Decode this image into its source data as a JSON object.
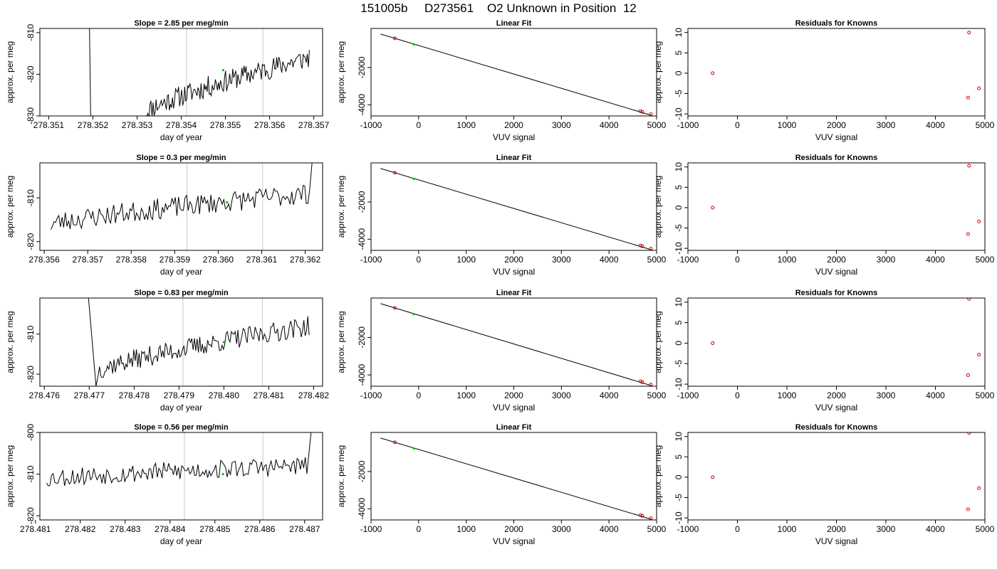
{
  "title": "151005b     D273561    O2 Unknown in Position  12",
  "colors": {
    "axis": "#000000",
    "trace": "#000000",
    "grid_vline": "#c8c8c8",
    "known_point": "#d00000",
    "unknown_point": "#00c000",
    "fit_line": "#000000"
  },
  "chart_data": [
    {
      "type": "line",
      "row": 0,
      "title": "Slope =  2.85  per meg/min",
      "xlabel": "day of year",
      "ylabel": "approx. per meg",
      "xlim": [
        278.3508,
        278.3572
      ],
      "ylim": [
        -830,
        -809
      ],
      "xticks": [
        "278.351",
        "278.352",
        "278.353",
        "278.354",
        "278.355",
        "278.356",
        "278.357"
      ],
      "yticks": [
        "-810",
        "-820",
        "-830"
      ],
      "vlines": [
        278.35412,
        278.35585
      ],
      "start_values": [
        -790,
        -830
      ],
      "start_x": [
        278.3519,
        278.35195
      ],
      "trace_start": 278.3532,
      "trace_end": 278.3569,
      "trace_base": -829,
      "trace_end_level": -816,
      "noise": 2.6,
      "seed": 11,
      "marker": {
        "x": 278.35495,
        "y": -819
      }
    },
    {
      "type": "line",
      "row": 1,
      "title": "Slope =  0.3  per meg/min",
      "xlabel": "day of year",
      "ylabel": "approx. per meg",
      "xlim": [
        278.3559,
        278.3624
      ],
      "ylim": [
        -822,
        -802
      ],
      "xticks": [
        "278.356",
        "278.357",
        "278.358",
        "278.359",
        "278.360",
        "278.361",
        "278.362"
      ],
      "yticks": [
        "-810",
        "-820"
      ],
      "vlines": [
        278.35928,
        278.36102
      ],
      "trace_start": 278.35615,
      "trace_end": 278.3621,
      "trace_base": -816,
      "trace_end_level": -809,
      "noise": 2.4,
      "seed": 23,
      "end_spike": -795,
      "marker": {
        "x": 278.3602,
        "y": -811
      }
    },
    {
      "type": "line",
      "row": 2,
      "title": "Slope =  0.83  per meg/min",
      "xlabel": "day of year",
      "ylabel": "approx. per meg",
      "xlim": [
        278.4759,
        278.4822
      ],
      "ylim": [
        -823,
        -801
      ],
      "xticks": [
        "278.476",
        "278.477",
        "278.478",
        "278.479",
        "278.480",
        "278.481",
        "278.482"
      ],
      "yticks": [
        "-810",
        "-820"
      ],
      "vlines": [
        278.47909,
        278.48086
      ],
      "start_values": [
        -790,
        -823
      ],
      "start_x": [
        278.4769,
        278.47715
      ],
      "trace_start": 278.4772,
      "trace_end": 278.4819,
      "trace_base": -819,
      "trace_end_level": -808,
      "noise": 2.5,
      "seed": 37,
      "marker": {
        "x": 278.48,
        "y": -812
      }
    },
    {
      "type": "line",
      "row": 3,
      "title": "Slope =  0.56  per meg/min",
      "xlabel": "day of year",
      "ylabel": "approx. per meg",
      "xlim": [
        278.4811,
        278.4874
      ],
      "ylim": [
        -821,
        -800
      ],
      "xticks": [
        "278.482",
        "278.483",
        "278.484",
        "278.485",
        "278.486",
        "278.487"
      ],
      "xtick_first": "278.481",
      "yticks": [
        "-800",
        "-810",
        "-820"
      ],
      "vlines": [
        278.48432,
        278.48607
      ],
      "trace_start": 278.48125,
      "trace_end": 278.48705,
      "trace_base": -811,
      "trace_end_level": -808,
      "noise": 2.3,
      "seed": 53,
      "end_spike": -795,
      "marker": {
        "x": 278.48518,
        "y": -810
      }
    },
    {
      "type": "scatter",
      "row": 0,
      "title": "Linear Fit",
      "xlabel": "VUV signal",
      "ylabel": "approx. per meg",
      "xlim": [
        -1000,
        5000
      ],
      "ylim": [
        -4600,
        100
      ],
      "xticks": [
        "-1000",
        "0",
        "1000",
        "2000",
        "3000",
        "4000",
        "5000"
      ],
      "yticks": [
        "-2000",
        "-4000"
      ],
      "fit_line": {
        "x": [
          -800,
          4900
        ],
        "y": [
          -200,
          -4575
        ]
      },
      "knowns": [
        {
          "x": -500,
          "y": -430
        },
        {
          "x": 4660,
          "y": -4340
        },
        {
          "x": 4700,
          "y": -4380
        },
        {
          "x": 4880,
          "y": -4510
        }
      ],
      "unknown": {
        "x": -100,
        "y": -760
      }
    },
    {
      "type": "scatter",
      "row": 1,
      "title": "Linear Fit",
      "xlabel": "VUV signal",
      "ylabel": "approx. per meg",
      "xlim": [
        -1000,
        5000
      ],
      "ylim": [
        -4600,
        100
      ],
      "xticks": [
        "-1000",
        "0",
        "1000",
        "2000",
        "3000",
        "4000",
        "5000"
      ],
      "yticks": [
        "-2000",
        "-4000"
      ],
      "fit_line": {
        "x": [
          -800,
          4900
        ],
        "y": [
          -200,
          -4575
        ]
      },
      "knowns": [
        {
          "x": -500,
          "y": -430
        },
        {
          "x": 4660,
          "y": -4340
        },
        {
          "x": 4700,
          "y": -4380
        },
        {
          "x": 4880,
          "y": -4510
        }
      ],
      "unknown": {
        "x": -100,
        "y": -760
      }
    },
    {
      "type": "scatter",
      "row": 2,
      "title": "Linear Fit",
      "xlabel": "VUV signal",
      "ylabel": "approx. per meg",
      "xlim": [
        -1000,
        5000
      ],
      "ylim": [
        -4600,
        100
      ],
      "xticks": [
        "-1000",
        "0",
        "1000",
        "2000",
        "3000",
        "4000",
        "5000"
      ],
      "yticks": [
        "-2000",
        "-4000"
      ],
      "fit_line": {
        "x": [
          -800,
          4900
        ],
        "y": [
          -200,
          -4575
        ]
      },
      "knowns": [
        {
          "x": -500,
          "y": -430
        },
        {
          "x": 4660,
          "y": -4340
        },
        {
          "x": 4700,
          "y": -4380
        },
        {
          "x": 4880,
          "y": -4510
        }
      ],
      "unknown": {
        "x": -100,
        "y": -760
      }
    },
    {
      "type": "scatter",
      "row": 3,
      "title": "Linear Fit",
      "xlabel": "VUV signal",
      "ylabel": "approx. per meg",
      "xlim": [
        -1000,
        5000
      ],
      "ylim": [
        -4600,
        100
      ],
      "xticks": [
        "-1000",
        "0",
        "1000",
        "2000",
        "3000",
        "4000",
        "5000"
      ],
      "yticks": [
        "-2000",
        "-4000"
      ],
      "fit_line": {
        "x": [
          -800,
          4900
        ],
        "y": [
          -200,
          -4575
        ]
      },
      "knowns": [
        {
          "x": -500,
          "y": -430
        },
        {
          "x": 4660,
          "y": -4340
        },
        {
          "x": 4700,
          "y": -4380
        },
        {
          "x": 4880,
          "y": -4510
        }
      ],
      "unknown": {
        "x": -100,
        "y": -760
      }
    },
    {
      "type": "scatter",
      "row": 0,
      "title": "Residuals for Knowns",
      "xlabel": "VUV signal",
      "ylabel": "approx. per meg",
      "xlim": [
        -1000,
        5000
      ],
      "ylim": [
        -10.5,
        11
      ],
      "xticks": [
        "-1000",
        "0",
        "1000",
        "2000",
        "3000",
        "4000",
        "5000"
      ],
      "yticks": [
        "10",
        "5",
        "0",
        "-5",
        "-10"
      ],
      "knowns": [
        {
          "x": -500,
          "y": 0
        },
        {
          "x": 4680,
          "y": 10
        },
        {
          "x": 4660,
          "y": -6
        },
        {
          "x": 4880,
          "y": -3.7
        }
      ]
    },
    {
      "type": "scatter",
      "row": 1,
      "title": "Residuals for Knowns",
      "xlabel": "VUV signal",
      "ylabel": "approx. per meg",
      "xlim": [
        -1000,
        5000
      ],
      "ylim": [
        -10.5,
        11
      ],
      "xticks": [
        "-1000",
        "0",
        "1000",
        "2000",
        "3000",
        "4000",
        "5000"
      ],
      "yticks": [
        "10",
        "5",
        "0",
        "-5",
        "-10"
      ],
      "knowns": [
        {
          "x": -500,
          "y": 0
        },
        {
          "x": 4680,
          "y": 10.3
        },
        {
          "x": 4660,
          "y": -6.5
        },
        {
          "x": 4880,
          "y": -3.4
        }
      ]
    },
    {
      "type": "scatter",
      "row": 2,
      "title": "Residuals for Knowns",
      "xlabel": "VUV signal",
      "ylabel": "approx. per meg",
      "xlim": [
        -1000,
        5000
      ],
      "ylim": [
        -10.5,
        11
      ],
      "xticks": [
        "-1000",
        "0",
        "1000",
        "2000",
        "3000",
        "4000",
        "5000"
      ],
      "yticks": [
        "10",
        "5",
        "0",
        "-5",
        "-10"
      ],
      "knowns": [
        {
          "x": -500,
          "y": 0
        },
        {
          "x": 4680,
          "y": 10.8
        },
        {
          "x": 4660,
          "y": -7.8
        },
        {
          "x": 4880,
          "y": -2.8
        }
      ]
    },
    {
      "type": "scatter",
      "row": 3,
      "title": "Residuals for Knowns",
      "xlabel": "VUV signal",
      "ylabel": "approx. per meg",
      "xlim": [
        -1000,
        5000
      ],
      "ylim": [
        -10.5,
        11
      ],
      "xticks": [
        "-1000",
        "0",
        "1000",
        "2000",
        "3000",
        "4000",
        "5000"
      ],
      "yticks": [
        "10",
        "5",
        "0",
        "-5",
        "-10"
      ],
      "knowns": [
        {
          "x": -500,
          "y": 0
        },
        {
          "x": 4680,
          "y": 10.9
        },
        {
          "x": 4660,
          "y": -7.9
        },
        {
          "x": 4880,
          "y": -2.7
        }
      ]
    }
  ]
}
